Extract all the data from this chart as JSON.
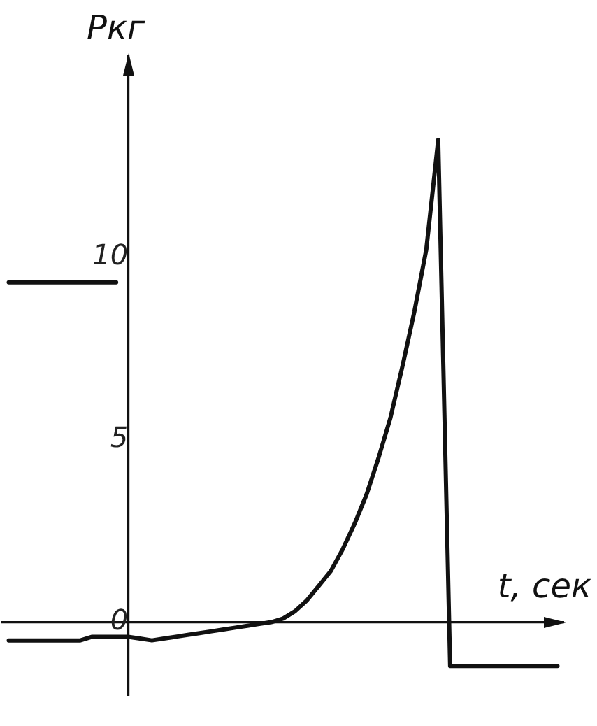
{
  "chart_data": {
    "type": "line",
    "xlabel": "t, сек",
    "ylabel": "Pкг",
    "categories": [
      null,
      null,
      null,
      null,
      null,
      null,
      null,
      null,
      null,
      null,
      null,
      null,
      null,
      null,
      null,
      null,
      null,
      null,
      null,
      null,
      null,
      null,
      null,
      null,
      null,
      null,
      null,
      null,
      null,
      null,
      null,
      null,
      null,
      null,
      null,
      null,
      null,
      null,
      null,
      null,
      null,
      null,
      null,
      null,
      null,
      null,
      null
    ],
    "ylim": [
      -2,
      15.5
    ],
    "yticks": [
      0,
      5,
      10
    ],
    "grid": false,
    "legend": false,
    "marker": "none",
    "line_style": "solid",
    "series": [
      {
        "color": "#111111",
        "values": [
          9.3,
          9.3,
          9.3,
          9.3,
          9.3,
          9.3,
          9.3,
          9.3,
          9.3,
          9.3,
          null,
          null,
          null,
          null,
          null,
          null,
          null,
          null,
          null,
          null,
          null,
          null,
          null,
          null,
          null,
          null,
          null,
          null,
          null,
          null,
          null,
          null,
          null,
          null,
          null,
          null,
          null,
          null,
          null,
          null,
          null,
          null,
          null,
          null,
          null,
          null,
          null
        ]
      },
      {
        "color": "#111111",
        "values": [
          -0.5,
          -0.5,
          -0.5,
          -0.5,
          -0.5,
          -0.5,
          -0.5,
          -0.4,
          -0.4,
          -0.4,
          -0.4,
          -0.45,
          -0.5,
          -0.45,
          -0.4,
          -0.35,
          -0.3,
          -0.25,
          -0.2,
          -0.15,
          -0.1,
          -0.05,
          0,
          0.1,
          0.3,
          0.6,
          1,
          1.4,
          2,
          2.7,
          3.5,
          4.5,
          5.6,
          7,
          8.5,
          10.2,
          13.2,
          -1.2,
          -1.2,
          -1.2,
          -1.2,
          -1.2,
          -1.2,
          -1.2,
          -1.2,
          -1.2,
          -1.2
        ]
      }
    ]
  }
}
